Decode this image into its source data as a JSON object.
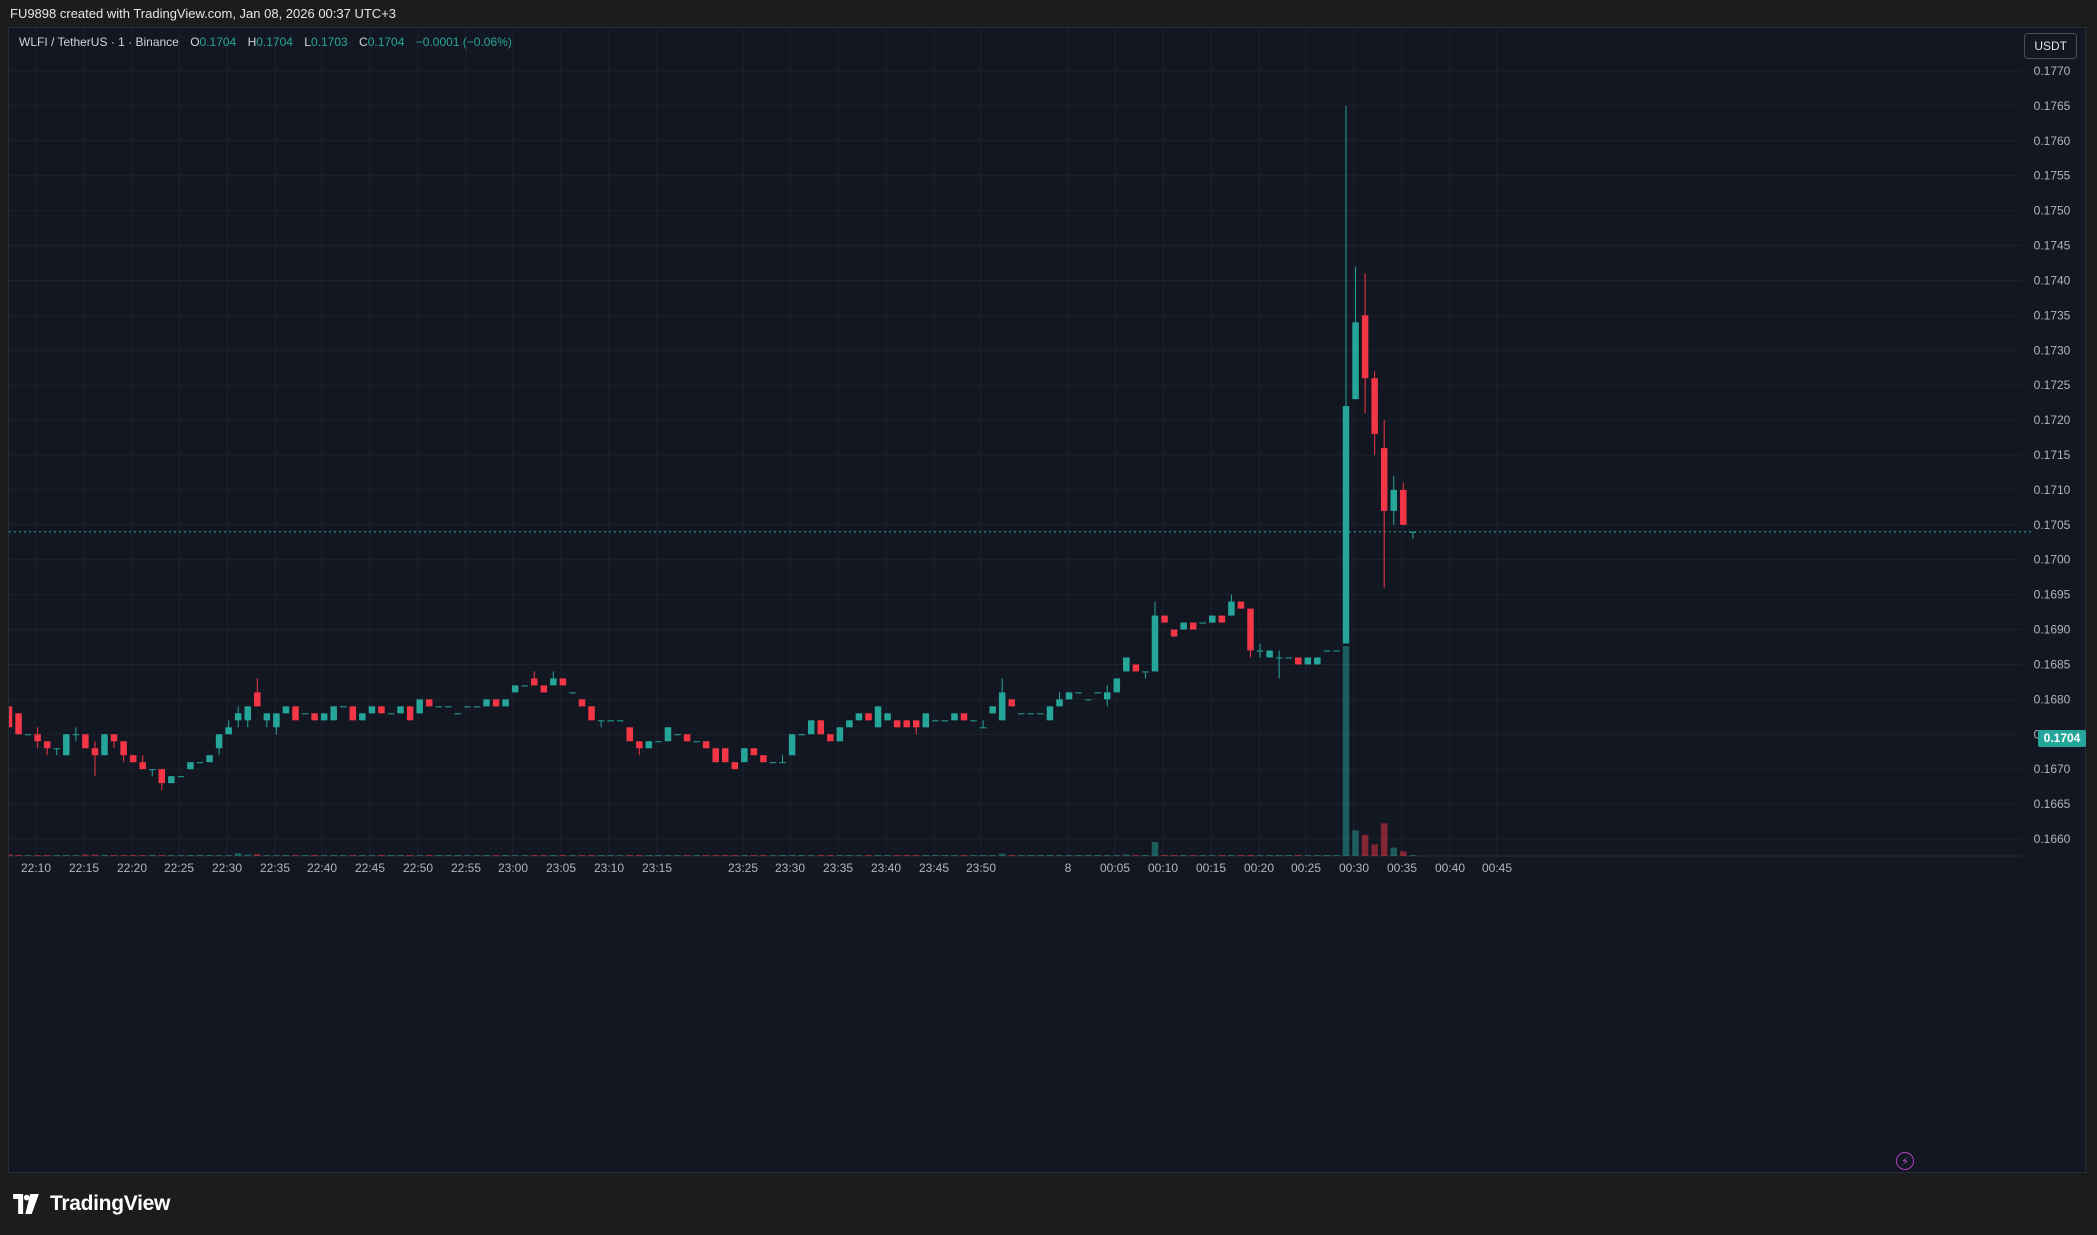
{
  "caption": "FU9898 created with TradingView.com, Jan 08, 2026 00:37 UTC+3",
  "legend": {
    "symbol": "WLFI / TetherUS · 1 · Binance",
    "o_label": "O",
    "o_value": "0.1704",
    "h_label": "H",
    "h_value": "0.1704",
    "l_label": "L",
    "l_value": "0.1703",
    "c_label": "C",
    "c_value": "0.1704",
    "change": "−0.0001 (−0.06%)"
  },
  "currency_button": "USDT",
  "last_price": "0.1704",
  "brand": {
    "name": "TradingView",
    "icon": "tradingview-logo-icon"
  },
  "flash_icon": "lightning-icon",
  "colors": {
    "up": "#26a69a",
    "down": "#f23645",
    "background": "#131722",
    "grid": "#1e222d"
  },
  "chart_data": {
    "type": "candlestick",
    "interval": "1",
    "y_ticks": [
      "0.1660",
      "0.1665",
      "0.1670",
      "0.1675",
      "0.1680",
      "0.1685",
      "0.1690",
      "0.1695",
      "0.1700",
      "0.1705",
      "0.1710",
      "0.1715",
      "0.1720",
      "0.1725",
      "0.1730",
      "0.1735",
      "0.1740",
      "0.1745",
      "0.1750",
      "0.1755",
      "0.1760",
      "0.1765",
      "0.1770"
    ],
    "ylim": [
      0.16574,
      0.17762
    ],
    "last_price": 0.1704,
    "x_ticks": [
      "22:10",
      "22:15",
      "22:20",
      "22:25",
      "22:30",
      "22:35",
      "22:40",
      "22:45",
      "22:50",
      "22:55",
      "23:00",
      "23:05",
      "23:10",
      "23:15",
      "23:25",
      "23:30",
      "23:35",
      "23:40",
      "23:45",
      "23:50",
      "8",
      "00:05",
      "00:10",
      "00:15",
      "00:20",
      "00:25",
      "00:30",
      "00:35",
      "00:40",
      "00:45"
    ],
    "candles": [
      [
        0.1679,
        0.1679,
        0.1676,
        0.1676,
        4
      ],
      [
        0.1678,
        0.1678,
        0.1675,
        0.1675,
        2
      ],
      [
        0.1675,
        0.1675,
        0.1675,
        0.1675,
        1
      ],
      [
        0.1675,
        0.1676,
        0.1673,
        0.1674,
        1
      ],
      [
        0.1674,
        0.1674,
        0.1672,
        0.1673,
        2
      ],
      [
        0.1673,
        0.1673,
        0.1672,
        0.1673,
        1
      ],
      [
        0.1672,
        0.1675,
        0.1672,
        0.1675,
        2
      ],
      [
        0.1675,
        0.1676,
        0.1674,
        0.1675,
        1
      ],
      [
        0.1675,
        0.1675,
        0.1673,
        0.1673,
        3
      ],
      [
        0.1673,
        0.1674,
        0.1669,
        0.1672,
        3
      ],
      [
        0.1672,
        0.1675,
        0.1672,
        0.1675,
        2
      ],
      [
        0.1675,
        0.1675,
        0.1673,
        0.1674,
        1
      ],
      [
        0.1674,
        0.1674,
        0.1671,
        0.1672,
        2
      ],
      [
        0.1672,
        0.1672,
        0.1671,
        0.1671,
        1
      ],
      [
        0.1671,
        0.1672,
        0.167,
        0.167,
        1
      ],
      [
        0.167,
        0.167,
        0.1669,
        0.167,
        1
      ],
      [
        0.167,
        0.167,
        0.1667,
        0.1668,
        2
      ],
      [
        0.1668,
        0.1669,
        0.1668,
        0.1669,
        1
      ],
      [
        0.1669,
        0.1669,
        0.1669,
        0.1669,
        1
      ],
      [
        0.167,
        0.1671,
        0.167,
        0.1671,
        1
      ],
      [
        0.1671,
        0.1671,
        0.1671,
        0.1671,
        1
      ],
      [
        0.1671,
        0.1672,
        0.1671,
        0.1672,
        2
      ],
      [
        0.1673,
        0.1675,
        0.1672,
        0.1675,
        2
      ],
      [
        0.1675,
        0.1677,
        0.1675,
        0.1676,
        2
      ],
      [
        0.1677,
        0.1679,
        0.1676,
        0.1678,
        6
      ],
      [
        0.1677,
        0.1679,
        0.1676,
        0.1679,
        3
      ],
      [
        0.1681,
        0.1683,
        0.1679,
        0.1679,
        4
      ],
      [
        0.1677,
        0.1678,
        0.1676,
        0.1678,
        2
      ],
      [
        0.1676,
        0.1678,
        0.1675,
        0.1678,
        1
      ],
      [
        0.1678,
        0.1679,
        0.1678,
        0.1679,
        1
      ],
      [
        0.1679,
        0.1679,
        0.1677,
        0.1677,
        2
      ],
      [
        0.1678,
        0.1678,
        0.1678,
        0.1678,
        1
      ],
      [
        0.1678,
        0.1678,
        0.1677,
        0.1677,
        1
      ],
      [
        0.1677,
        0.1678,
        0.1677,
        0.1678,
        1
      ],
      [
        0.1677,
        0.1679,
        0.1677,
        0.1679,
        1
      ],
      [
        0.1679,
        0.1679,
        0.1679,
        0.1679,
        1
      ],
      [
        0.1679,
        0.1679,
        0.1677,
        0.1677,
        1
      ],
      [
        0.1677,
        0.1678,
        0.1677,
        0.1678,
        1
      ],
      [
        0.1678,
        0.1679,
        0.1678,
        0.1679,
        1
      ],
      [
        0.1679,
        0.1679,
        0.1678,
        0.1678,
        1
      ],
      [
        0.1678,
        0.1678,
        0.1678,
        0.1678,
        1
      ],
      [
        0.1678,
        0.1679,
        0.1678,
        0.1679,
        1
      ],
      [
        0.1679,
        0.1679,
        0.1677,
        0.1677,
        1
      ],
      [
        0.1678,
        0.168,
        0.1678,
        0.168,
        2
      ],
      [
        0.168,
        0.168,
        0.1679,
        0.1679,
        1
      ],
      [
        0.1679,
        0.1679,
        0.1679,
        0.1679,
        1
      ],
      [
        0.1679,
        0.1679,
        0.1679,
        0.1679,
        1
      ],
      [
        0.1678,
        0.1678,
        0.1678,
        0.1678,
        1
      ],
      [
        0.1679,
        0.1679,
        0.1679,
        0.1679,
        1
      ],
      [
        0.1679,
        0.1679,
        0.1679,
        0.1679,
        1
      ],
      [
        0.1679,
        0.168,
        0.1679,
        0.168,
        1
      ],
      [
        0.168,
        0.168,
        0.1679,
        0.1679,
        1
      ],
      [
        0.1679,
        0.168,
        0.1679,
        0.168,
        1
      ],
      [
        0.1681,
        0.1682,
        0.1681,
        0.1682,
        2
      ],
      [
        0.1682,
        0.1682,
        0.1682,
        0.1682,
        1
      ],
      [
        0.1683,
        0.1684,
        0.1682,
        0.1682,
        1
      ],
      [
        0.1682,
        0.1682,
        0.1681,
        0.1681,
        1
      ],
      [
        0.1682,
        0.1684,
        0.1682,
        0.1683,
        1
      ],
      [
        0.1683,
        0.1683,
        0.1682,
        0.1682,
        1
      ],
      [
        0.1681,
        0.1681,
        0.1681,
        0.1681,
        1
      ],
      [
        0.168,
        0.168,
        0.1679,
        0.1679,
        1
      ],
      [
        0.1679,
        0.1679,
        0.1677,
        0.1677,
        1
      ],
      [
        0.1677,
        0.1677,
        0.1676,
        0.1677,
        1
      ],
      [
        0.1677,
        0.1677,
        0.1677,
        0.1677,
        1
      ],
      [
        0.1677,
        0.1677,
        0.1677,
        0.1677,
        1
      ],
      [
        0.1676,
        0.1676,
        0.1674,
        0.1674,
        1
      ],
      [
        0.1674,
        0.1674,
        0.1672,
        0.1673,
        1
      ],
      [
        0.1673,
        0.1674,
        0.1673,
        0.1674,
        1
      ],
      [
        0.1674,
        0.1674,
        0.1674,
        0.1674,
        1
      ],
      [
        0.1674,
        0.1676,
        0.1674,
        0.1676,
        2
      ],
      [
        0.1675,
        0.1675,
        0.1675,
        0.1675,
        1
      ],
      [
        0.1675,
        0.1675,
        0.1674,
        0.1674,
        1
      ],
      [
        0.1674,
        0.1674,
        0.1674,
        0.1674,
        1
      ],
      [
        0.1674,
        0.1674,
        0.1673,
        0.1673,
        1
      ],
      [
        0.1673,
        0.1673,
        0.1671,
        0.1671,
        1
      ],
      [
        0.1673,
        0.1673,
        0.1671,
        0.1671,
        1
      ],
      [
        0.1671,
        0.1671,
        0.167,
        0.167,
        1
      ],
      [
        0.1671,
        0.1673,
        0.1671,
        0.1673,
        1
      ],
      [
        0.1673,
        0.1673,
        0.1672,
        0.1672,
        1
      ],
      [
        0.1672,
        0.1672,
        0.1671,
        0.1671,
        1
      ],
      [
        0.1671,
        0.1671,
        0.1671,
        0.1671,
        1
      ],
      [
        0.1671,
        0.1672,
        0.1671,
        0.1671,
        1
      ],
      [
        0.1672,
        0.1675,
        0.1672,
        0.1675,
        1
      ],
      [
        0.1675,
        0.1675,
        0.1675,
        0.1675,
        1
      ],
      [
        0.1675,
        0.1677,
        0.1675,
        0.1677,
        2
      ],
      [
        0.1677,
        0.1677,
        0.1675,
        0.1675,
        1
      ],
      [
        0.1675,
        0.1675,
        0.1674,
        0.1674,
        1
      ],
      [
        0.1674,
        0.1676,
        0.1674,
        0.1676,
        1
      ],
      [
        0.1676,
        0.1677,
        0.1676,
        0.1677,
        1
      ],
      [
        0.1677,
        0.1678,
        0.1677,
        0.1678,
        1
      ],
      [
        0.1678,
        0.1678,
        0.1677,
        0.1677,
        2
      ],
      [
        0.1676,
        0.1679,
        0.1676,
        0.1679,
        2
      ],
      [
        0.1677,
        0.1678,
        0.1677,
        0.1678,
        1
      ],
      [
        0.1677,
        0.1677,
        0.1676,
        0.1676,
        1
      ],
      [
        0.1677,
        0.1677,
        0.1676,
        0.1676,
        1
      ],
      [
        0.1677,
        0.1677,
        0.1675,
        0.1676,
        1
      ],
      [
        0.1676,
        0.1678,
        0.1676,
        0.1678,
        1
      ],
      [
        0.1677,
        0.1677,
        0.1677,
        0.1677,
        1
      ],
      [
        0.1677,
        0.1677,
        0.1677,
        0.1677,
        1
      ],
      [
        0.1677,
        0.1678,
        0.1677,
        0.1678,
        1
      ],
      [
        0.1678,
        0.1678,
        0.1677,
        0.1677,
        1
      ],
      [
        0.1677,
        0.1677,
        0.1677,
        0.1677,
        1
      ],
      [
        0.1676,
        0.1677,
        0.1676,
        0.1676,
        1
      ],
      [
        0.1678,
        0.1679,
        0.1678,
        0.1679,
        1
      ],
      [
        0.1677,
        0.1683,
        0.1677,
        0.1681,
        5
      ],
      [
        0.168,
        0.168,
        0.1679,
        0.1679,
        2
      ],
      [
        0.1678,
        0.1678,
        0.1678,
        0.1678,
        1
      ],
      [
        0.1678,
        0.1678,
        0.1678,
        0.1678,
        1
      ],
      [
        0.1678,
        0.1678,
        0.1678,
        0.1678,
        1
      ],
      [
        0.1677,
        0.1679,
        0.1677,
        0.1679,
        1
      ],
      [
        0.1679,
        0.1681,
        0.1679,
        0.168,
        2
      ],
      [
        0.168,
        0.1681,
        0.168,
        0.1681,
        1
      ],
      [
        0.1681,
        0.1681,
        0.1681,
        0.1681,
        1
      ],
      [
        0.168,
        0.168,
        0.168,
        0.168,
        1
      ],
      [
        0.1681,
        0.1681,
        0.1681,
        0.1681,
        1
      ],
      [
        0.168,
        0.1682,
        0.1679,
        0.1681,
        1
      ],
      [
        0.1681,
        0.1683,
        0.1681,
        0.1683,
        2
      ],
      [
        0.1684,
        0.1686,
        0.1684,
        0.1686,
        3
      ],
      [
        0.1685,
        0.1685,
        0.1684,
        0.1684,
        2
      ],
      [
        0.1684,
        0.1684,
        0.1683,
        0.1684,
        1
      ],
      [
        0.1684,
        0.1694,
        0.1684,
        0.1692,
        30
      ],
      [
        0.1692,
        0.1692,
        0.1691,
        0.1691,
        2
      ],
      [
        0.169,
        0.169,
        0.1689,
        0.1689,
        2
      ],
      [
        0.169,
        0.1691,
        0.169,
        0.1691,
        2
      ],
      [
        0.1691,
        0.1691,
        0.169,
        0.169,
        1
      ],
      [
        0.1691,
        0.1691,
        0.1691,
        0.1691,
        1
      ],
      [
        0.1691,
        0.1692,
        0.1691,
        0.1692,
        1
      ],
      [
        0.1692,
        0.1692,
        0.1691,
        0.1691,
        1
      ],
      [
        0.1692,
        0.1695,
        0.1692,
        0.1694,
        2
      ],
      [
        0.1694,
        0.1694,
        0.1693,
        0.1693,
        1
      ],
      [
        0.1693,
        0.1693,
        0.1686,
        0.1687,
        2
      ],
      [
        0.1687,
        0.1688,
        0.1686,
        0.1687,
        2
      ],
      [
        0.1686,
        0.1687,
        0.1686,
        0.1687,
        1
      ],
      [
        0.1686,
        0.1687,
        0.1683,
        0.1686,
        1
      ],
      [
        0.1686,
        0.1686,
        0.1686,
        0.1686,
        1
      ],
      [
        0.1686,
        0.1686,
        0.1685,
        0.1685,
        1
      ],
      [
        0.1685,
        0.1686,
        0.1685,
        0.1686,
        1
      ],
      [
        0.1685,
        0.1686,
        0.1685,
        0.1686,
        1
      ],
      [
        0.1687,
        0.1687,
        0.1687,
        0.1687,
        1
      ],
      [
        0.1687,
        0.1687,
        0.1687,
        0.1687,
        1
      ],
      [
        0.1688,
        0.1765,
        0.1688,
        0.1722,
        450
      ],
      [
        0.1723,
        0.1742,
        0.1723,
        0.1734,
        55
      ],
      [
        0.1735,
        0.1741,
        0.1721,
        0.1726,
        45
      ],
      [
        0.1726,
        0.1727,
        0.1715,
        0.1718,
        25
      ],
      [
        0.1716,
        0.172,
        0.1696,
        0.1707,
        70
      ],
      [
        0.1707,
        0.1712,
        0.1705,
        0.171,
        18
      ],
      [
        0.171,
        0.1711,
        0.1705,
        0.1705,
        10
      ],
      [
        0.1704,
        0.1704,
        0.1703,
        0.1704,
        1
      ]
    ]
  }
}
